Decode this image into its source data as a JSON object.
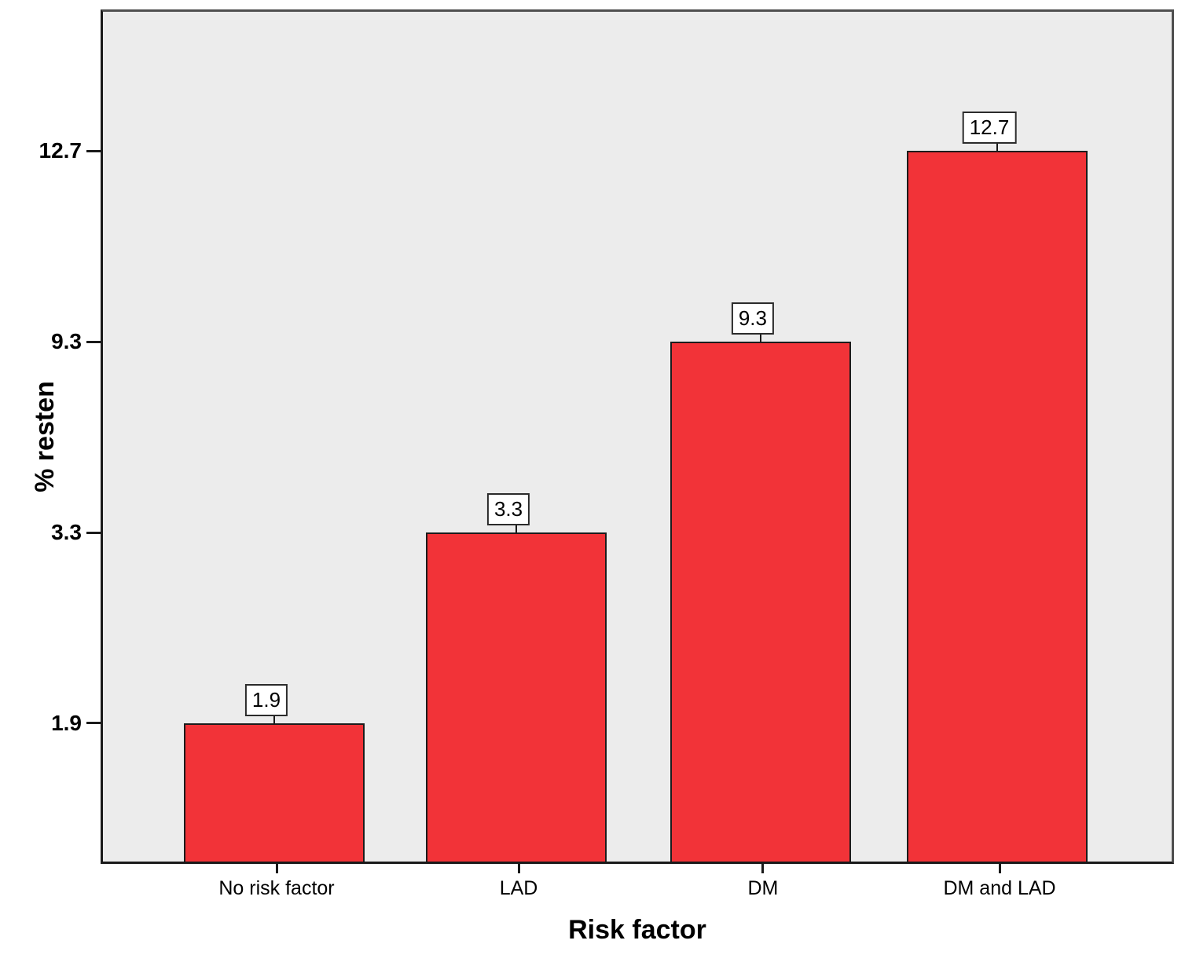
{
  "figure": {
    "background_color": "#ffffff",
    "plot_background_color": "#ececec",
    "bar_fill_color": "#f23338",
    "bar_border_color": "#1c1c1c",
    "axis_line_color": "#1a1a1a",
    "frame_line_color": "#4f4f4f",
    "label_box_fill_color": "#ffffff",
    "label_box_border_color": "#2b2b2b",
    "text_color": "#000000"
  },
  "chart_data": {
    "type": "bar",
    "title": "",
    "xlabel": "Risk factor",
    "ylabel": "% resten",
    "categories": [
      "No risk factor",
      "LAD",
      "DM",
      "DM and LAD"
    ],
    "values": [
      1.9,
      3.3,
      9.3,
      12.7
    ],
    "bar_value_labels": [
      "1.9",
      "3.3",
      "9.3",
      "12.7"
    ],
    "ytick_labels": [
      "1.9",
      "3.3",
      "9.3",
      "12.7"
    ],
    "ytick_values": [
      1.9,
      3.3,
      9.3,
      12.7
    ],
    "grid": false,
    "legend": "none",
    "layout_hints": {
      "note": "y axis is non-linear: bar tops and matching y ticks are equally stepped",
      "bar_center_fracs": [
        0.1625,
        0.389,
        0.6176,
        0.839
      ],
      "bar_width_frac": 0.169,
      "bar_height_fracs": [
        0.1627,
        0.3872,
        0.6118,
        0.8364
      ]
    }
  }
}
